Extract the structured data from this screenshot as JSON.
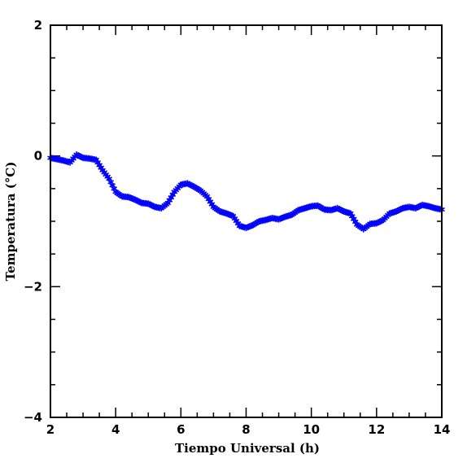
{
  "chart_data": {
    "type": "scatter",
    "marker": "asterisk",
    "color": "#0000ff",
    "title": "",
    "xlabel": "Tiempo Universal (h)",
    "ylabel": "Temperatura (°C)",
    "xlim": [
      2,
      14
    ],
    "ylim": [
      -4,
      2
    ],
    "x_ticks": [
      2,
      4,
      6,
      8,
      10,
      12,
      14
    ],
    "y_ticks": [
      -4,
      -2,
      0,
      2
    ],
    "x_tick_labels": [
      "2",
      "4",
      "6",
      "8",
      "10",
      "12",
      "14"
    ],
    "y_tick_labels": [
      "−4",
      "−2",
      "0",
      "2"
    ],
    "x_minor_step": 0.5,
    "y_minor_step": 0.5,
    "grid": false,
    "series": [
      {
        "x": [
          2.0,
          2.2,
          2.4,
          2.6,
          2.8,
          3.0,
          3.2,
          3.4,
          3.6,
          3.8,
          4.0,
          4.2,
          4.4,
          4.6,
          4.8,
          5.0,
          5.2,
          5.4,
          5.6,
          5.8,
          6.0,
          6.2,
          6.4,
          6.6,
          6.8,
          7.0,
          7.2,
          7.4,
          7.6,
          7.8,
          8.0,
          8.2,
          8.4,
          8.6,
          8.8,
          9.0,
          9.2,
          9.4,
          9.6,
          9.8,
          10.0,
          10.2,
          10.4,
          10.6,
          10.8,
          11.0,
          11.2,
          11.4,
          11.6,
          11.8,
          12.0,
          12.2,
          12.4,
          12.6,
          12.8,
          13.0,
          13.2,
          13.4,
          13.6,
          13.8,
          14.0
        ],
        "y": [
          -0.03,
          -0.05,
          -0.07,
          -0.1,
          0.02,
          -0.03,
          -0.04,
          -0.06,
          -0.22,
          -0.35,
          -0.55,
          -0.62,
          -0.63,
          -0.67,
          -0.72,
          -0.73,
          -0.78,
          -0.8,
          -0.72,
          -0.55,
          -0.44,
          -0.42,
          -0.47,
          -0.53,
          -0.62,
          -0.78,
          -0.85,
          -0.88,
          -0.92,
          -1.07,
          -1.1,
          -1.06,
          -1.0,
          -0.98,
          -0.95,
          -0.97,
          -0.93,
          -0.9,
          -0.83,
          -0.8,
          -0.77,
          -0.76,
          -0.82,
          -0.83,
          -0.8,
          -0.85,
          -0.88,
          -1.05,
          -1.12,
          -1.04,
          -1.03,
          -0.98,
          -0.88,
          -0.85,
          -0.8,
          -0.78,
          -0.8,
          -0.75,
          -0.77,
          -0.8,
          -0.82
        ]
      }
    ]
  }
}
